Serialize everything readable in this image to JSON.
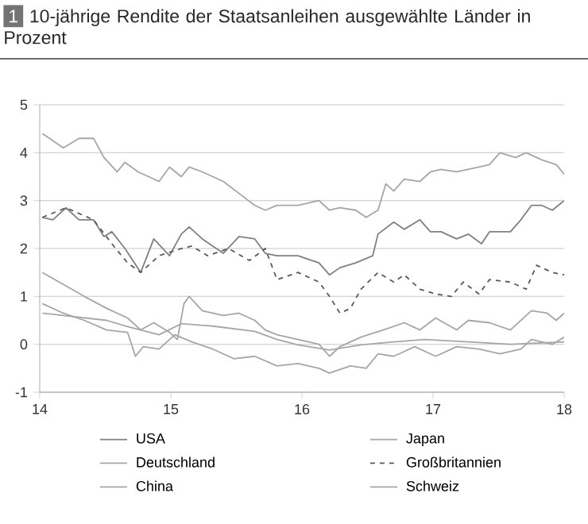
{
  "chart_data": {
    "type": "line",
    "title": "10-jährige Rendite der Staatsanleihen ausgewählte Länder in Prozent",
    "annotations": [
      "1"
    ],
    "xlim": [
      14,
      18
    ],
    "xticks": [
      14,
      15,
      16,
      17,
      18
    ],
    "ylim": [
      -1,
      5
    ],
    "yticks": [
      -1,
      0,
      1,
      2,
      3,
      4,
      5
    ],
    "grid": "y",
    "legend": "bottom",
    "marker": "none",
    "series": [
      {
        "name": "USA",
        "color": "#808080",
        "line_style": "solid",
        "x": [
          14.02,
          14.1,
          14.2,
          14.3,
          14.41,
          14.49,
          14.55,
          14.65,
          14.77,
          14.87,
          14.99,
          15.08,
          15.14,
          15.24,
          15.32,
          15.4,
          15.52,
          15.64,
          15.72,
          15.81,
          15.97,
          16.13,
          16.21,
          16.29,
          16.41,
          16.54,
          16.58,
          16.7,
          16.78,
          16.9,
          16.98,
          17.06,
          17.18,
          17.27,
          17.37,
          17.43,
          17.59,
          17.67,
          17.75,
          17.83,
          17.91,
          18.0
        ],
        "values": [
          2.65,
          2.6,
          2.85,
          2.6,
          2.6,
          2.25,
          2.35,
          2.0,
          1.5,
          2.2,
          1.85,
          2.3,
          2.45,
          2.2,
          2.05,
          1.9,
          2.25,
          2.2,
          1.9,
          1.85,
          1.85,
          1.7,
          1.45,
          1.6,
          1.7,
          1.85,
          2.3,
          2.55,
          2.4,
          2.6,
          2.35,
          2.35,
          2.2,
          2.3,
          2.1,
          2.35,
          2.35,
          2.6,
          2.9,
          2.9,
          2.8,
          3.0
        ]
      },
      {
        "name": "Japan",
        "color": "#a6a6a6",
        "line_style": "solid",
        "x": [
          14.02,
          14.18,
          14.51,
          14.67,
          14.91,
          15.08,
          15.32,
          15.64,
          15.81,
          15.97,
          16.21,
          16.45,
          16.7,
          16.94,
          17.27,
          17.59,
          18.0
        ],
        "values": [
          0.65,
          0.6,
          0.5,
          0.37,
          0.2,
          0.43,
          0.38,
          0.27,
          0.1,
          -0.01,
          -0.12,
          -0.01,
          0.05,
          0.1,
          0.05,
          0,
          0.05
        ]
      },
      {
        "name": "Deutschland",
        "color": "#a6a6a6",
        "line_style": "solid",
        "x": [
          14.02,
          14.18,
          14.34,
          14.51,
          14.67,
          14.77,
          14.87,
          14.99,
          15.05,
          15.1,
          15.14,
          15.24,
          15.4,
          15.52,
          15.64,
          15.72,
          15.81,
          15.97,
          16.13,
          16.21,
          16.29,
          16.45,
          16.62,
          16.78,
          16.9,
          17.02,
          17.18,
          17.27,
          17.43,
          17.59,
          17.75,
          17.87,
          17.94,
          18.0
        ],
        "values": [
          1.5,
          1.25,
          1.0,
          0.75,
          0.55,
          0.3,
          0.45,
          0.25,
          0.1,
          0.85,
          1.0,
          0.7,
          0.6,
          0.65,
          0.5,
          0.3,
          0.2,
          0.1,
          0.0,
          -0.25,
          -0.05,
          0.15,
          0.3,
          0.45,
          0.3,
          0.55,
          0.3,
          0.5,
          0.45,
          0.3,
          0.7,
          0.65,
          0.5,
          0.65
        ]
      },
      {
        "name": "Großbritannien",
        "color": "#595959",
        "line_style": "dashed",
        "x": [
          14.02,
          14.2,
          14.41,
          14.55,
          14.67,
          14.77,
          14.91,
          15.08,
          15.16,
          15.28,
          15.44,
          15.6,
          15.72,
          15.81,
          15.97,
          16.13,
          16.21,
          16.29,
          16.37,
          16.45,
          16.58,
          16.7,
          16.78,
          16.9,
          17.02,
          17.14,
          17.23,
          17.35,
          17.43,
          17.59,
          17.71,
          17.79,
          17.91,
          18.0
        ],
        "values": [
          2.65,
          2.85,
          2.6,
          2.1,
          1.7,
          1.5,
          1.85,
          2.0,
          2.05,
          1.85,
          2.0,
          1.75,
          2.0,
          1.35,
          1.5,
          1.3,
          1.0,
          0.65,
          0.75,
          1.15,
          1.5,
          1.3,
          1.45,
          1.15,
          1.05,
          1.0,
          1.3,
          1.05,
          1.35,
          1.3,
          1.15,
          1.65,
          1.5,
          1.45
        ]
      },
      {
        "name": "China",
        "color": "#a6a6a6",
        "line_style": "solid",
        "x": [
          14.02,
          14.18,
          14.3,
          14.41,
          14.49,
          14.59,
          14.65,
          14.75,
          14.91,
          14.99,
          15.08,
          15.14,
          15.24,
          15.32,
          15.4,
          15.52,
          15.64,
          15.72,
          15.81,
          15.97,
          16.13,
          16.21,
          16.29,
          16.41,
          16.49,
          16.58,
          16.64,
          16.7,
          16.78,
          16.9,
          16.98,
          17.06,
          17.18,
          17.35,
          17.43,
          17.51,
          17.63,
          17.71,
          17.83,
          17.94,
          18.0
        ],
        "values": [
          4.4,
          4.1,
          4.3,
          4.3,
          3.9,
          3.6,
          3.8,
          3.6,
          3.4,
          3.7,
          3.5,
          3.7,
          3.6,
          3.5,
          3.4,
          3.15,
          2.9,
          2.8,
          2.9,
          2.9,
          3.0,
          2.8,
          2.85,
          2.8,
          2.65,
          2.8,
          3.35,
          3.2,
          3.45,
          3.4,
          3.6,
          3.65,
          3.6,
          3.7,
          3.75,
          4.0,
          3.9,
          4.0,
          3.85,
          3.75,
          3.55
        ]
      },
      {
        "name": "Schweiz",
        "color": "#a6a6a6",
        "line_style": "solid",
        "x": [
          14.02,
          14.18,
          14.34,
          14.51,
          14.67,
          14.73,
          14.79,
          14.91,
          15.03,
          15.16,
          15.32,
          15.48,
          15.64,
          15.81,
          15.97,
          16.13,
          16.21,
          16.37,
          16.49,
          16.58,
          16.7,
          16.86,
          17.02,
          17.18,
          17.35,
          17.51,
          17.67,
          17.75,
          17.91,
          18.0
        ],
        "values": [
          0.85,
          0.65,
          0.5,
          0.3,
          0.25,
          -0.25,
          -0.05,
          -0.1,
          0.2,
          0.05,
          -0.1,
          -0.3,
          -0.25,
          -0.45,
          -0.4,
          -0.5,
          -0.6,
          -0.45,
          -0.5,
          -0.2,
          -0.25,
          -0.05,
          -0.25,
          -0.05,
          -0.1,
          -0.2,
          -0.1,
          0.1,
          0.0,
          0.15
        ]
      }
    ]
  }
}
